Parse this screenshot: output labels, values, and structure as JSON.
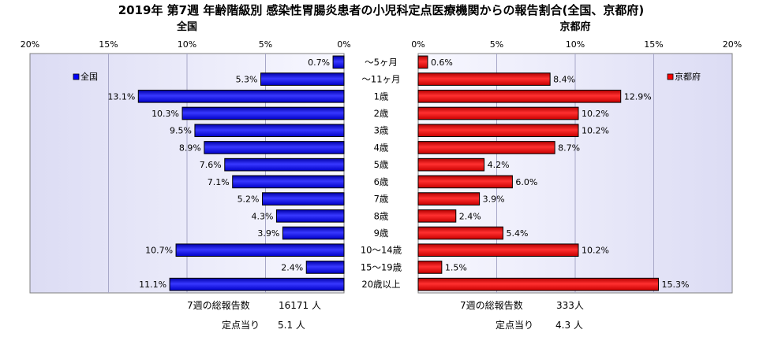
{
  "chart_data": {
    "type": "bar",
    "title": "2019年 第7週 年齢階級別 感染性胃腸炎患者の小児科定点医療機関からの報告割合(全国、京都府)",
    "categories": [
      "～5ヶ月",
      "～11ヶ月",
      "1歳",
      "2歳",
      "3歳",
      "4歳",
      "5歳",
      "6歳",
      "7歳",
      "8歳",
      "9歳",
      "10～14歳",
      "15～19歳",
      "20歳以上"
    ],
    "xlim": [
      0,
      20
    ],
    "ticks": [
      "0%",
      "5%",
      "10%",
      "15%",
      "20%"
    ],
    "grid": true,
    "series": [
      {
        "name": "全国",
        "panel_title": "全国",
        "color": "#0000ff",
        "values": [
          0.7,
          5.3,
          13.1,
          10.3,
          9.5,
          8.9,
          7.6,
          7.1,
          5.2,
          4.3,
          3.9,
          10.7,
          2.4,
          11.1
        ],
        "labels": [
          "0.7%",
          "5.3%",
          "13.1%",
          "10.3%",
          "9.5%",
          "8.9%",
          "7.6%",
          "7.1%",
          "5.2%",
          "4.3%",
          "3.9%",
          "10.7%",
          "2.4%",
          "11.1%"
        ],
        "legend": "top-left",
        "total_label": "7週の総報告数",
        "total_value": "16171 人",
        "per_label": "定点当り",
        "per_value": "5.1 人"
      },
      {
        "name": "京都府",
        "panel_title": "京都府",
        "color": "#ff0000",
        "values": [
          0.6,
          8.4,
          12.9,
          10.2,
          10.2,
          8.7,
          4.2,
          6.0,
          3.9,
          2.4,
          5.4,
          10.2,
          1.5,
          15.3
        ],
        "labels": [
          "0.6%",
          "8.4%",
          "12.9%",
          "10.2%",
          "10.2%",
          "8.7%",
          "4.2%",
          "6.0%",
          "3.9%",
          "2.4%",
          "5.4%",
          "10.2%",
          "1.5%",
          "15.3%"
        ],
        "legend": "top-right",
        "total_label": "7週の総報告数",
        "total_value": "333人",
        "per_label": "定点当り",
        "per_value": "4.3 人"
      }
    ]
  }
}
